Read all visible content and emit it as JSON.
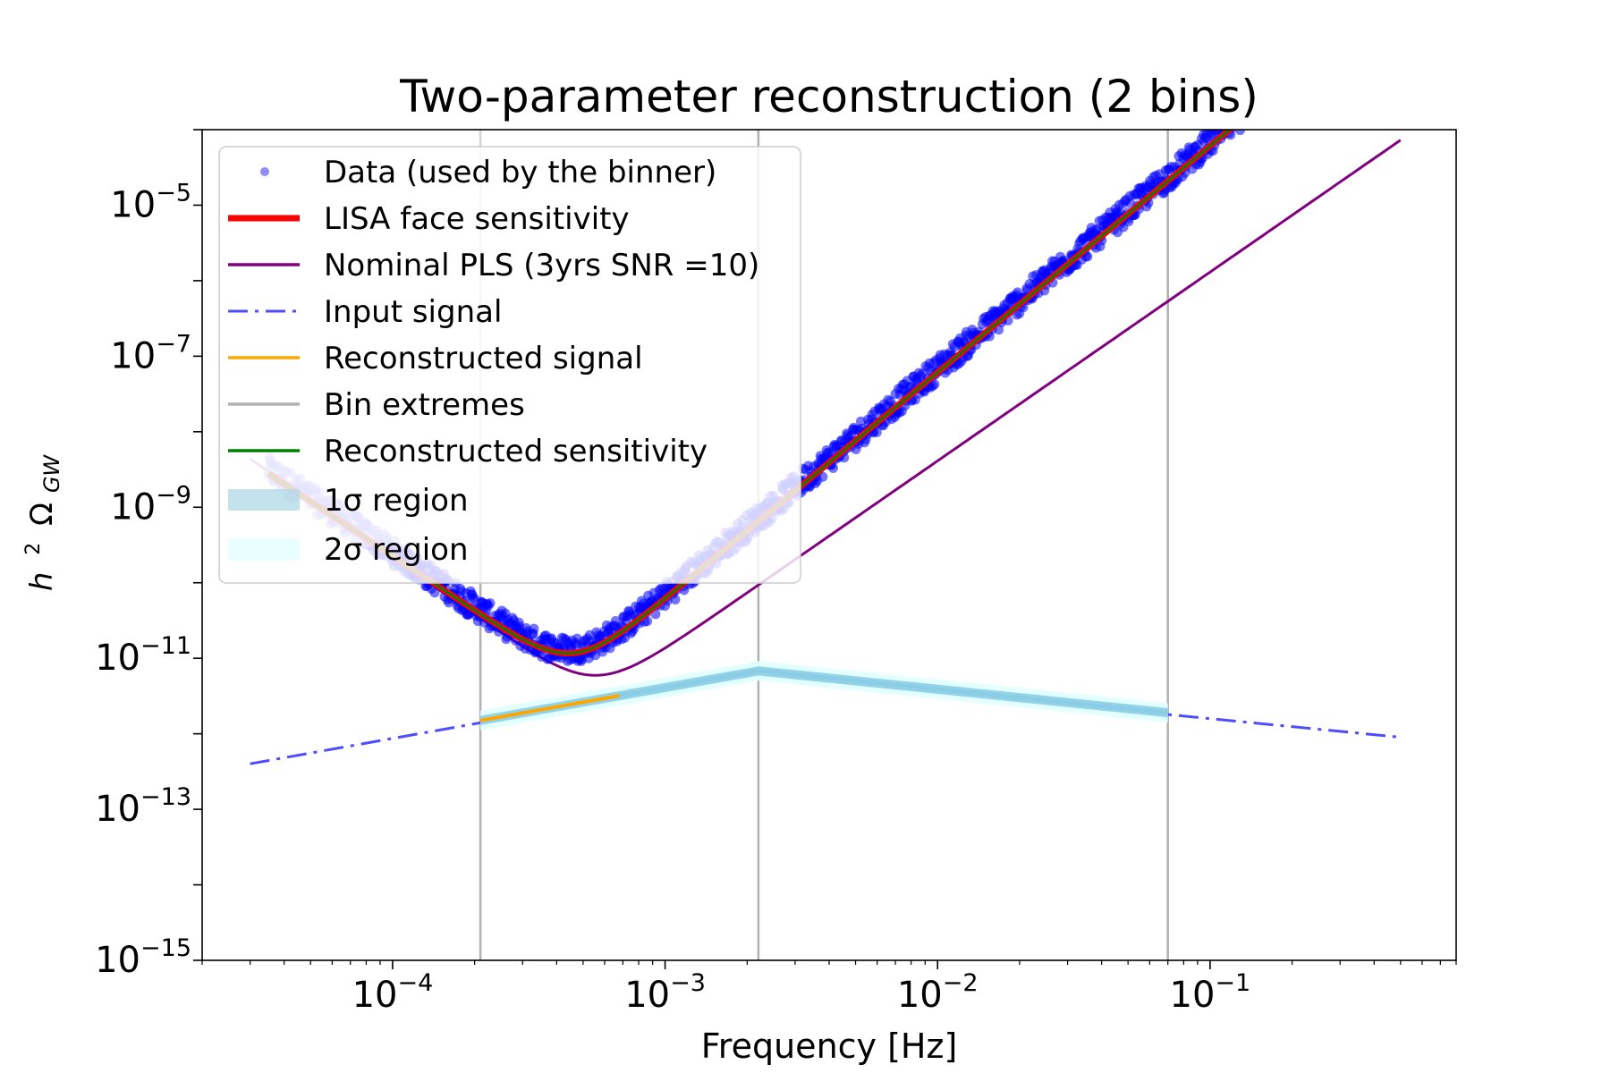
{
  "chart_data": {
    "type": "line",
    "title": "Two-parameter reconstruction (2 bins)",
    "xlabel": "Frequency [Hz]",
    "ylabel_main": "h",
    "ylabel_exp": "2",
    "ylabel_omega": "Ω",
    "ylabel_sub": "GW",
    "xscale": "log",
    "yscale": "log",
    "xlim": [
      2e-05,
      0.8
    ],
    "ylim": [
      1e-15,
      0.0001
    ],
    "x_ticks": [
      {
        "base": "10",
        "exp": "−4",
        "value": 0.0001
      },
      {
        "base": "10",
        "exp": "−3",
        "value": 0.001
      },
      {
        "base": "10",
        "exp": "−2",
        "value": 0.01
      },
      {
        "base": "10",
        "exp": "−1",
        "value": 0.1
      }
    ],
    "y_ticks": [
      {
        "base": "10",
        "exp": "−5",
        "value": 1e-05
      },
      {
        "base": "10",
        "exp": "−7",
        "value": 1e-07
      },
      {
        "base": "10",
        "exp": "−9",
        "value": 1e-09
      },
      {
        "base": "10",
        "exp": "−11",
        "value": 1e-11
      },
      {
        "base": "10",
        "exp": "−13",
        "value": 1e-13
      },
      {
        "base": "10",
        "exp": "−15",
        "value": 1e-15
      }
    ],
    "bin_edges": [
      0.00021,
      0.0022,
      0.07
    ],
    "input_signal": {
      "x": [
        3e-05,
        0.00021,
        0.0022,
        0.07,
        0.5
      ],
      "y": [
        4e-13,
        1.4e-12,
        6.5e-12,
        1.8e-12,
        9e-13
      ]
    },
    "reconstructed_signal": {
      "x": [
        0.00021,
        0.0022,
        0.07
      ],
      "y": [
        1.5e-12,
        6.8e-12,
        1.9e-12
      ]
    },
    "sensitivity_model": {
      "lowfreq_amp": 9e-13,
      "lowfreq_slope": -2.4,
      "highfreq_amp": 6.1e-11,
      "highfreq_slope": 3,
      "pivot": 0.001,
      "x_range": [
        3.5e-05,
        0.45
      ]
    },
    "pls_model": {
      "lowfreq_amp": 6.8e-13,
      "lowfreq_slope": -2.5,
      "highfreq_amp": 1.3e-11,
      "highfreq_slope": 2.5,
      "pivot": 0.001,
      "x_range": [
        3e-05,
        0.5
      ]
    },
    "legend": {
      "position": "upper-left",
      "entries": [
        {
          "label": "Data (used by the binner)",
          "kind": "marker",
          "color": "#0000ff"
        },
        {
          "label": "LISA face sensitivity",
          "kind": "line",
          "color": "#ff0000"
        },
        {
          "label": "Nominal PLS (3yrs SNR =10)",
          "kind": "line",
          "color": "#800080"
        },
        {
          "label": "Input signal",
          "kind": "dashdot",
          "color": "#4d4dff"
        },
        {
          "label": "Reconstructed signal",
          "kind": "line",
          "color": "#ffa500"
        },
        {
          "label": "Bin extremes",
          "kind": "line",
          "color": "#b0b0b0"
        },
        {
          "label": "Reconstructed sensitivity",
          "kind": "line",
          "color": "#008000"
        },
        {
          "label": "1σ region",
          "kind": "patch",
          "color": "#add8e6"
        },
        {
          "label": "2σ region",
          "kind": "patch",
          "color": "#e0ffff"
        }
      ]
    },
    "colors": {
      "data": "#0000ff",
      "lisa": "#ff0000",
      "pls": "#800080",
      "input": "#4d4dff",
      "recon": "#ffa500",
      "bins": "#b0b0b0",
      "recon_sens": "#008000",
      "sigma1": "#87ceeb",
      "sigma2": "#e0ffff"
    }
  }
}
